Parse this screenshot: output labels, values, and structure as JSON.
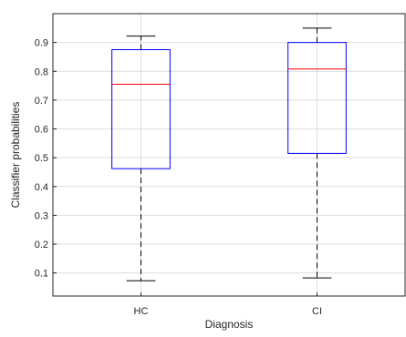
{
  "chart_data": {
    "type": "boxplot",
    "xlabel": "Diagnosis",
    "ylabel": "Classifier probabilities",
    "categories": [
      "HC",
      "CI"
    ],
    "ylim": [
      0.02,
      1.0
    ],
    "yticks": [
      0.1,
      0.2,
      0.3,
      0.4,
      0.5,
      0.6,
      0.7,
      0.8,
      0.9
    ],
    "ytick_labels": [
      "0.1",
      "0.2",
      "0.3",
      "0.4",
      "0.5",
      "0.6",
      "0.7",
      "0.8",
      "0.9"
    ],
    "grid": true,
    "boxes": [
      {
        "category": "HC",
        "min": 0.073,
        "q1": 0.462,
        "median": 0.755,
        "q3": 0.875,
        "max": 0.922
      },
      {
        "category": "CI",
        "min": 0.083,
        "q1": 0.515,
        "median": 0.808,
        "q3": 0.9,
        "max": 0.95
      }
    ],
    "colors": {
      "box": "#0000ff",
      "median": "#ff0000",
      "whisker": "#000000",
      "grid": "#dedede",
      "axis": "#262626"
    }
  }
}
